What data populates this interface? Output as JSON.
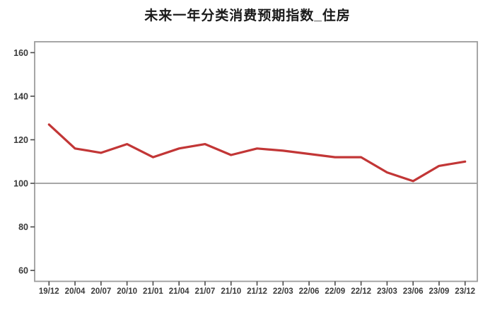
{
  "chart_data": {
    "type": "line",
    "title": "未来一年分类消费预期指数_住房",
    "categories": [
      "19/12",
      "20/04",
      "20/07",
      "20/10",
      "21/01",
      "21/04",
      "21/07",
      "21/10",
      "21/12",
      "22/03",
      "22/06",
      "22/09",
      "22/12",
      "23/03",
      "23/06",
      "23/09",
      "23/12"
    ],
    "series": [
      {
        "name": "住房",
        "values": [
          127,
          116,
          114,
          118,
          112,
          116,
          118,
          113,
          116,
          115,
          113.5,
          112,
          112,
          105,
          101,
          108,
          110
        ]
      }
    ],
    "xlabel": "",
    "ylabel": "",
    "yticks": [
      60,
      80,
      100,
      120,
      140,
      160
    ],
    "ylim": [
      55,
      165
    ],
    "reference_line": 100,
    "grid": "reference-line-only",
    "legend": "none",
    "colors": {
      "line": "#c23636",
      "reference_line": "#8a8a8a",
      "plot_border": "#9c9c9c",
      "axis_tick": "#4a4a4a",
      "tick_label": "#3a3a3a",
      "title": "#1a1a1a"
    }
  }
}
